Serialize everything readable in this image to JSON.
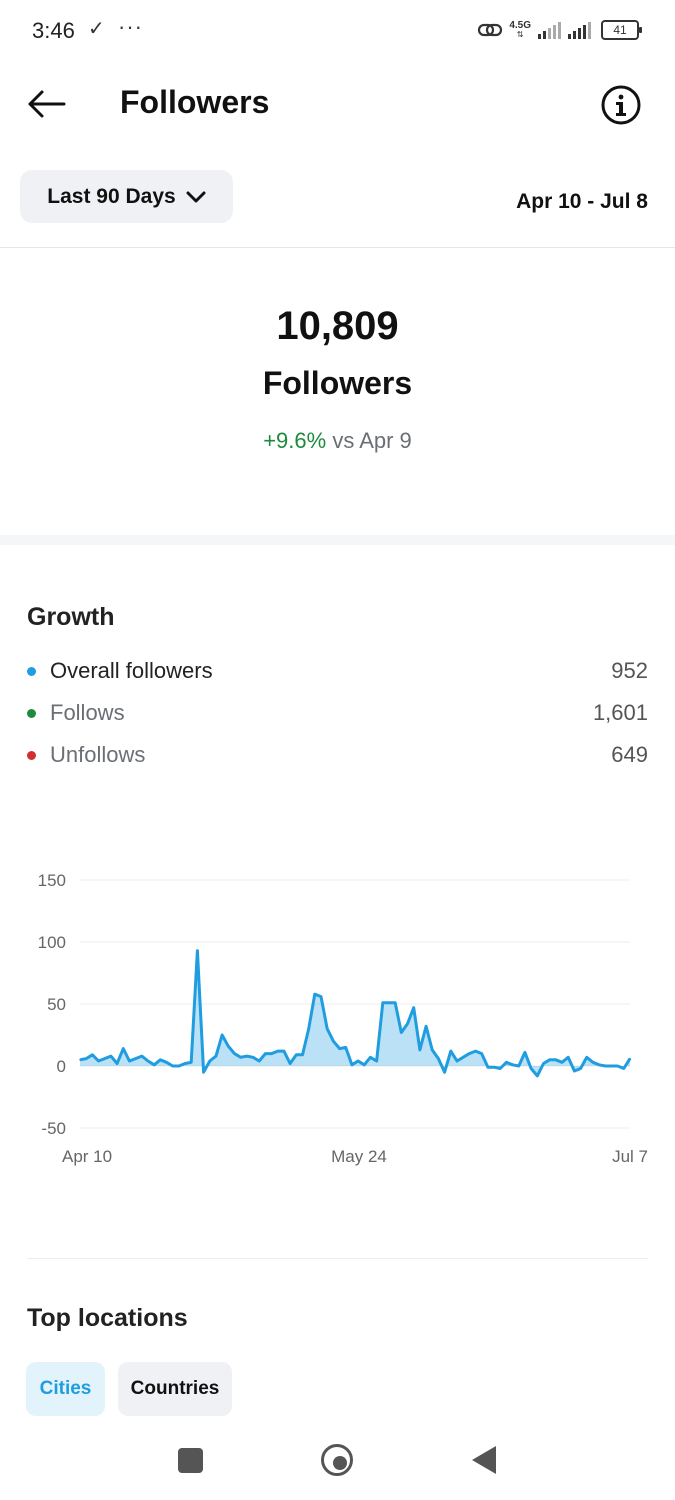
{
  "status_bar": {
    "time": "3:46",
    "net_label": "4.5G",
    "battery": "41"
  },
  "header": {
    "title": "Followers",
    "back_icon": "arrow-left-icon",
    "info_icon": "info-icon"
  },
  "filters": {
    "range_label": "Last 90 Days",
    "date_range": "Apr 10 - Jul 8"
  },
  "summary": {
    "total": "10,809",
    "label": "Followers",
    "delta_pct": "+9.6%",
    "delta_compare": "vs Apr 9"
  },
  "growth": {
    "title": "Growth",
    "legend": [
      {
        "label": "Overall followers",
        "value": "952",
        "color": "#1f9de0"
      },
      {
        "label": "Follows",
        "value": "1,601",
        "color": "#1e8a3d"
      },
      {
        "label": "Unfollows",
        "value": "649",
        "color": "#d32f2f"
      }
    ]
  },
  "chart_data": {
    "type": "area",
    "y_ticks": [
      "150",
      "100",
      "50",
      "0",
      "-50"
    ],
    "x_ticks": [
      "Apr 10",
      "May 24",
      "Jul 7"
    ],
    "ylim": [
      -50,
      150
    ],
    "series": [
      {
        "name": "Overall followers",
        "color": "#1f9de0",
        "values": [
          5,
          6,
          9,
          4,
          6,
          8,
          2,
          14,
          4,
          6,
          8,
          4,
          1,
          5,
          3,
          0,
          0,
          2,
          3,
          93,
          -5,
          4,
          8,
          25,
          16,
          10,
          7,
          8,
          7,
          4,
          10,
          10,
          12,
          12,
          2,
          9,
          9,
          30,
          58,
          56,
          30,
          20,
          14,
          15,
          1,
          4,
          1,
          7,
          4,
          51,
          51,
          51,
          27,
          34,
          47,
          13,
          32,
          13,
          6,
          -5,
          12,
          4,
          7,
          10,
          12,
          10,
          -1,
          -1,
          -2,
          3,
          1,
          0,
          11,
          -2,
          -8,
          2,
          5,
          5,
          3,
          7,
          -4,
          -2,
          7,
          3,
          1,
          0,
          0,
          0,
          -2,
          6
        ]
      }
    ]
  },
  "locations": {
    "title": "Top locations",
    "tabs": [
      "Cities",
      "Countries"
    ],
    "active_tab": "Cities"
  },
  "nav": {
    "recents_icon": "square-icon",
    "home_icon": "circle-home-icon",
    "back_icon": "triangle-back-icon"
  }
}
